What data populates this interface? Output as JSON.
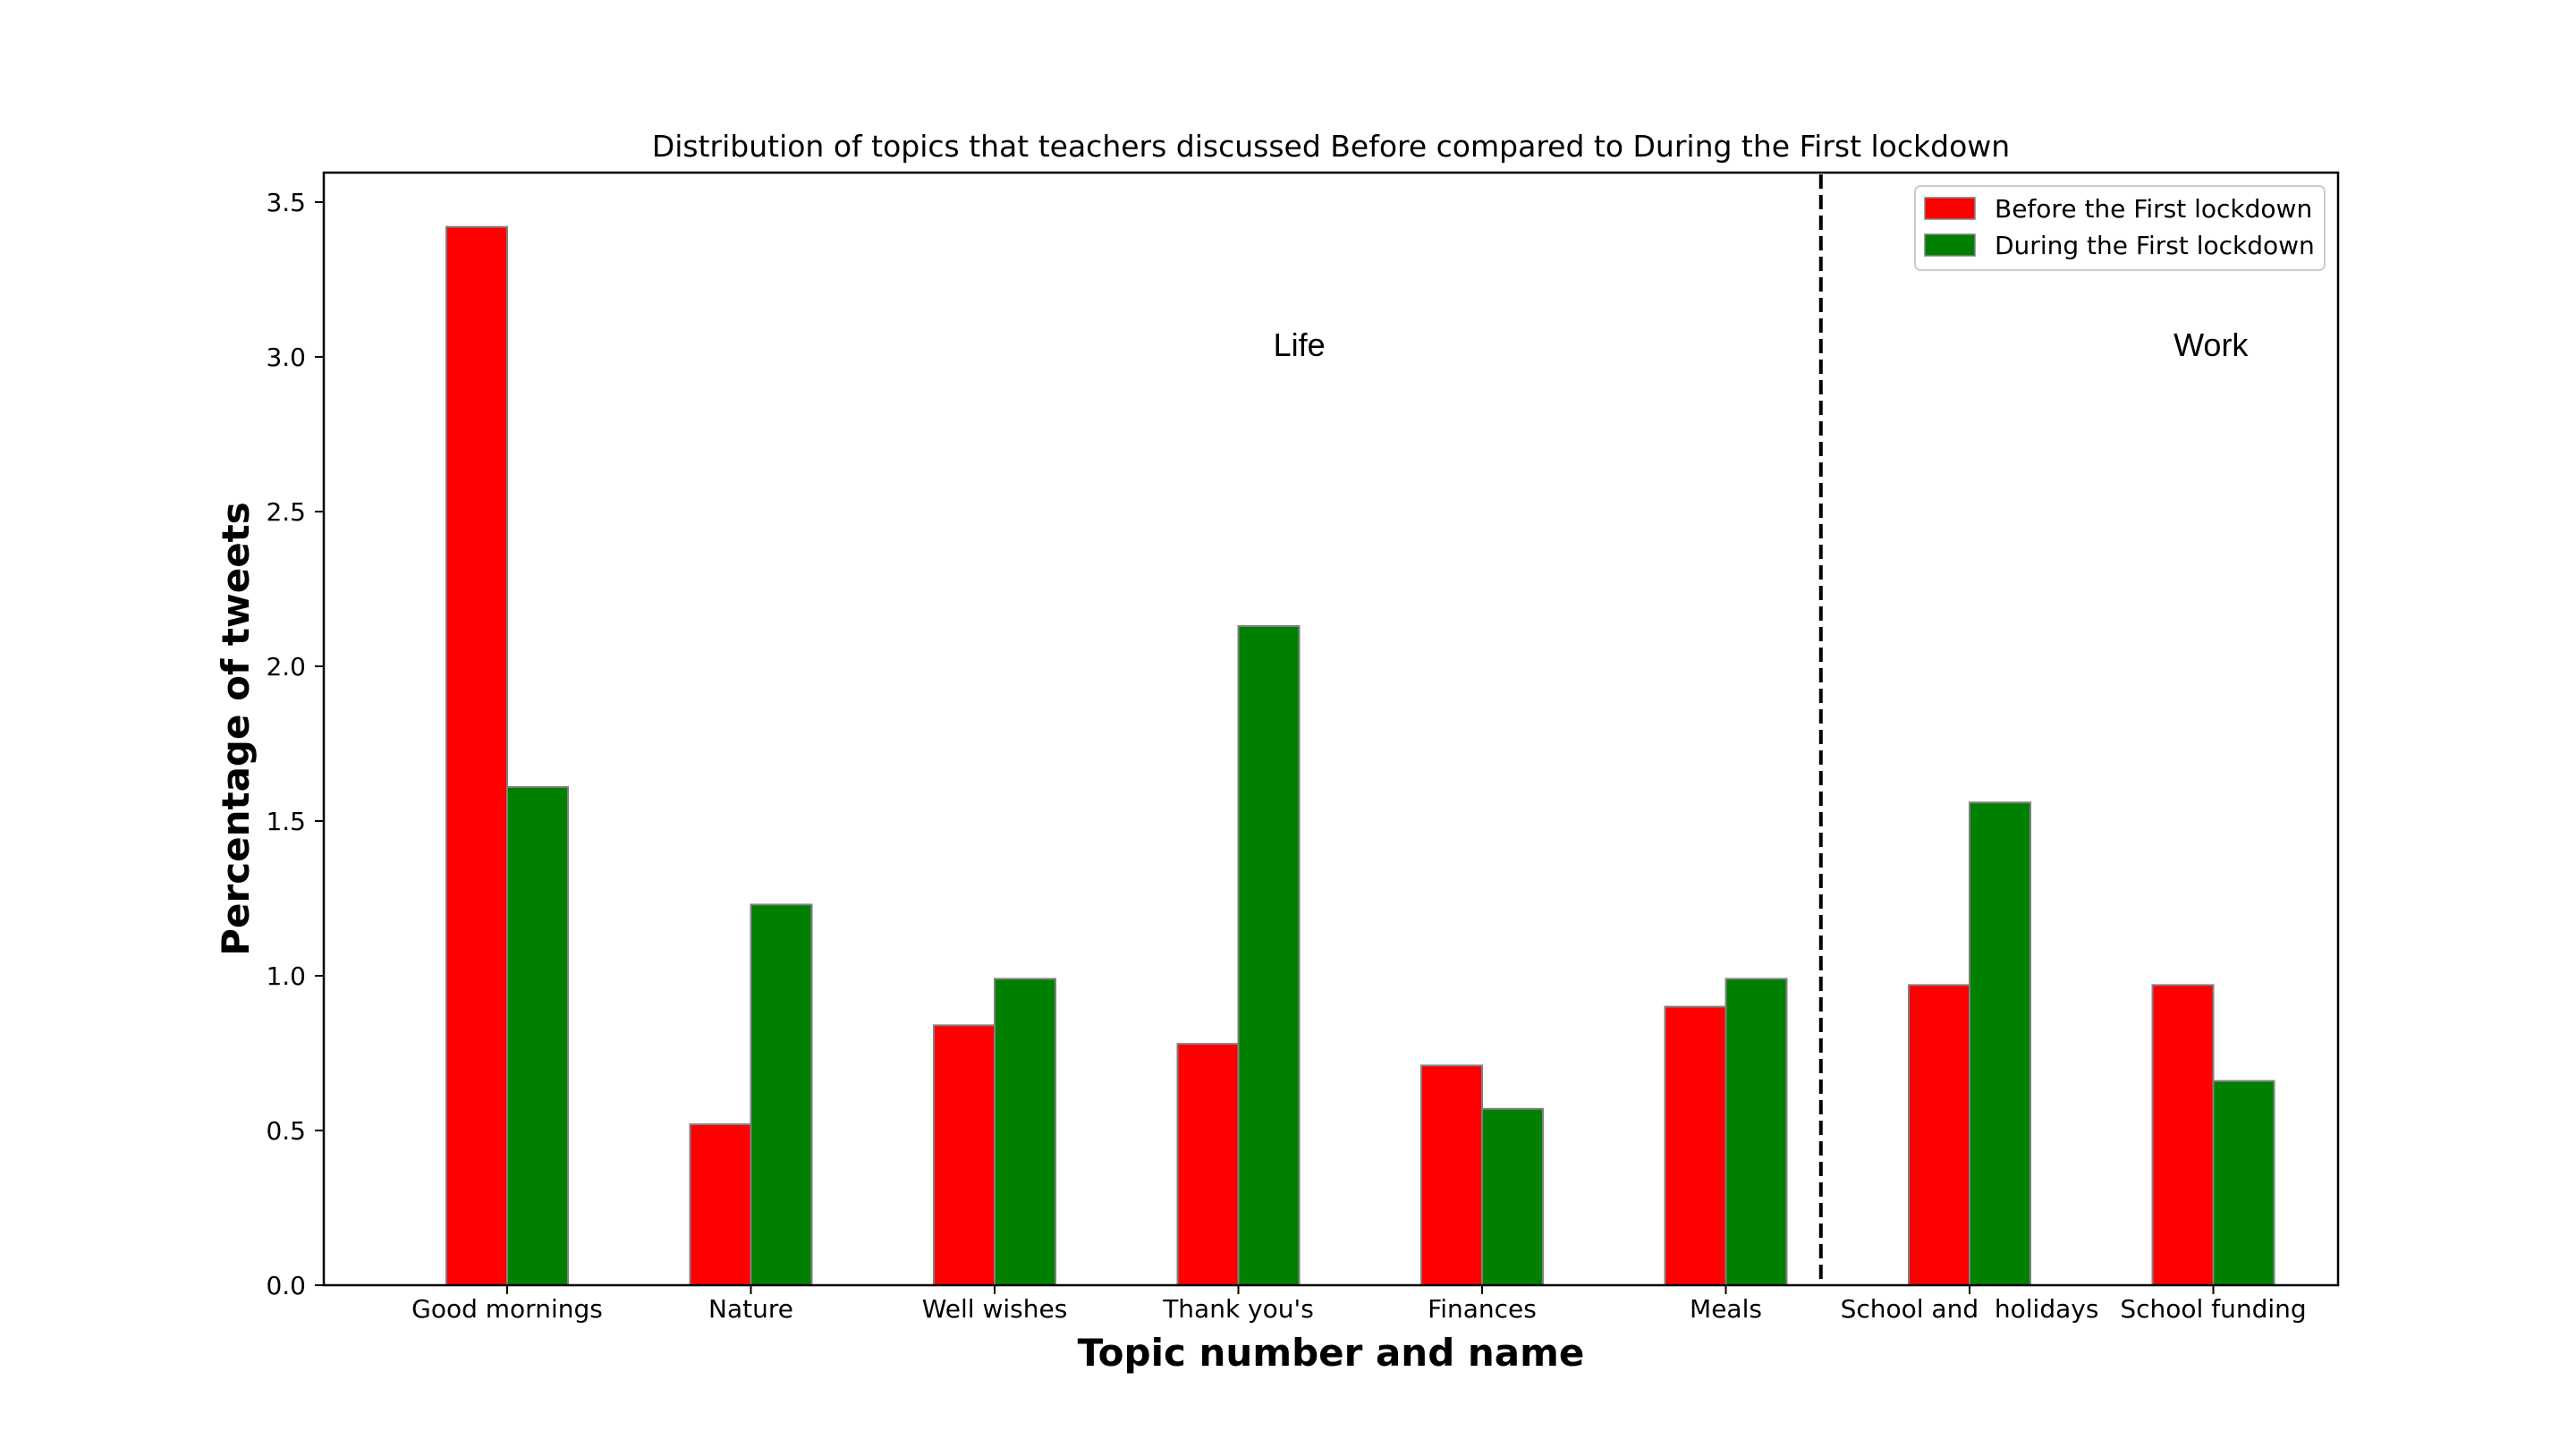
{
  "chart_data": {
    "type": "bar",
    "title": "Distribution of topics that teachers discussed Before compared to During the First lockdown",
    "xlabel": "Topic number and name",
    "ylabel": "Percentage of tweets",
    "categories": [
      "Good mornings",
      "Nature",
      "Well wishes",
      "Thank you's",
      "Finances",
      "Meals",
      "School and  holidays",
      "School funding"
    ],
    "series": [
      {
        "name": "Before the First lockdown",
        "color": "#ff0000",
        "values": [
          3.42,
          0.52,
          0.84,
          0.78,
          0.71,
          0.9,
          0.97,
          0.97
        ]
      },
      {
        "name": "During the First lockdown",
        "color": "#008000",
        "values": [
          1.61,
          1.23,
          0.99,
          2.13,
          0.57,
          0.99,
          1.56,
          0.66
        ]
      }
    ],
    "ylim": [
      0,
      3.6
    ],
    "yticks": [
      0.0,
      0.5,
      1.0,
      1.5,
      2.0,
      2.5,
      3.0,
      3.5
    ],
    "ytick_labels": [
      "0.0",
      "0.5",
      "1.0",
      "1.5",
      "2.0",
      "2.5",
      "3.0",
      "3.5"
    ],
    "grid": false,
    "legend_position": "top-right",
    "annotations": [
      {
        "text": "Life",
        "category_position": 3.25,
        "y": 3.0
      },
      {
        "text": "Work",
        "category_position": 6.99,
        "y": 3.0
      }
    ],
    "divider": {
      "style": "dashed",
      "category_position": 5.39
    }
  }
}
